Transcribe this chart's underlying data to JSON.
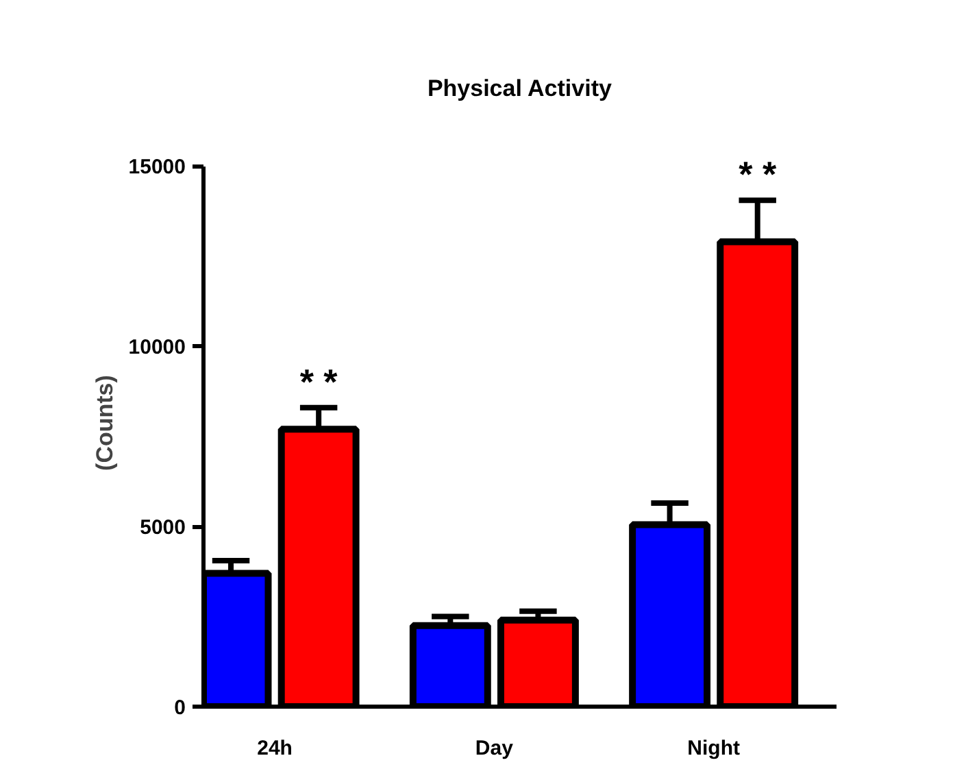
{
  "chart_data": {
    "type": "bar",
    "title": "Physical Activity",
    "ylabel": "(Counts)",
    "categories": [
      "24h",
      "Day",
      "Night"
    ],
    "series": [
      {
        "color": "#0000ff",
        "values": [
          3700,
          2250,
          5050
        ],
        "errors": [
          [
            3700,
            4050
          ],
          [
            2250,
            2500
          ],
          [
            5050,
            5650
          ]
        ]
      },
      {
        "color": "#ff0000",
        "values": [
          7700,
          2400,
          12900
        ],
        "errors": [
          [
            7700,
            8300
          ],
          [
            2400,
            2650
          ],
          [
            12900,
            14050
          ]
        ]
      }
    ],
    "ylim": [
      0,
      15000
    ],
    "yticks": [
      0,
      5000,
      10000,
      15000
    ],
    "grid": false,
    "annotations": [
      "* *",
      "* *"
    ]
  }
}
